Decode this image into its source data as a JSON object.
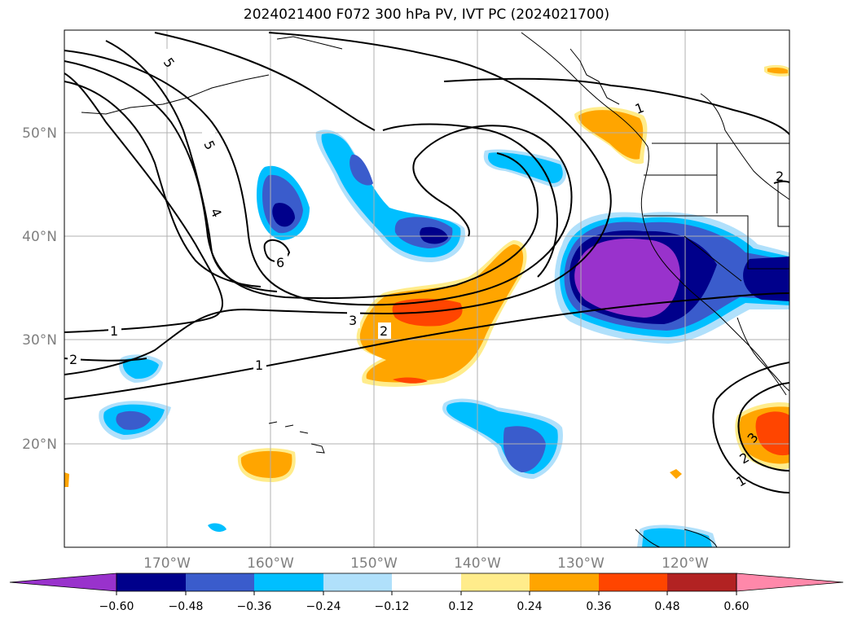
{
  "title": "2024021400 F072 300 hPa PV, IVT PC (2024021700)",
  "longitude_labels": [
    "170°W",
    "160°W",
    "150°W",
    "140°W",
    "130°W",
    "120°W"
  ],
  "latitude_labels": [
    "50°N",
    "40°N",
    "30°N",
    "20°N"
  ],
  "contour_labels": [
    "5",
    "5",
    "4",
    "6",
    "3",
    "2",
    "1",
    "1",
    "2",
    "1",
    "2",
    "2",
    "3",
    "1"
  ],
  "colorbar": {
    "ticks": [
      "−0.60",
      "−0.48",
      "−0.36",
      "−0.24",
      "−0.12",
      "0.12",
      "0.24",
      "0.36",
      "0.48",
      "0.60"
    ],
    "colors": [
      "#9932cc",
      "#00008b",
      "#3a5ccc",
      "#00bfff",
      "#b0e0fb",
      "#ffffff",
      "#ffec8b",
      "#ffa500",
      "#ff4500",
      "#b22222",
      "#ff88aa"
    ]
  },
  "colors": {
    "land_outline": "#000000",
    "grid": "#b0b0b0",
    "contour": "#000000"
  }
}
